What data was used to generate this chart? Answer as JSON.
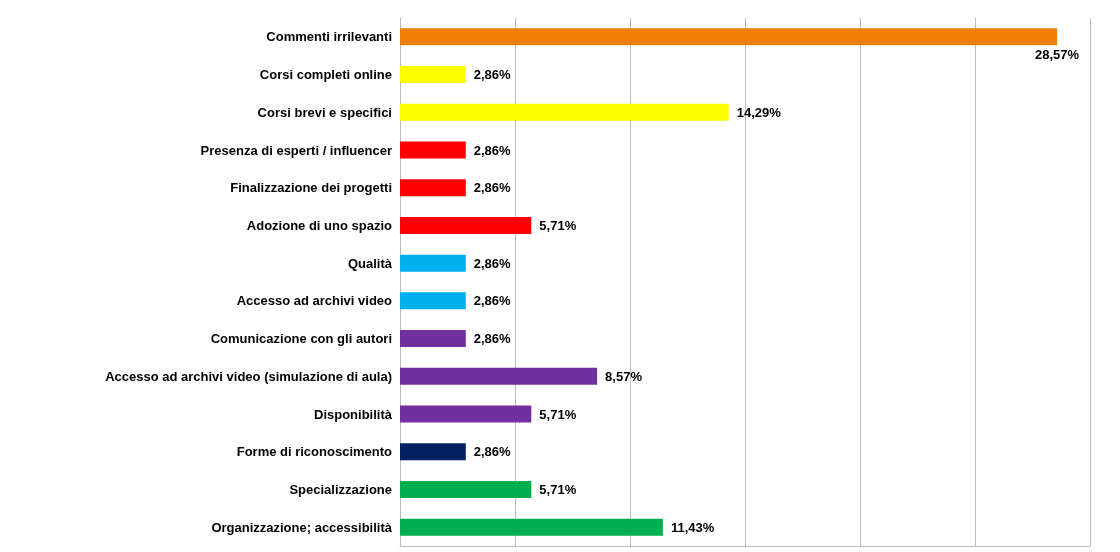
{
  "chart_data": {
    "type": "bar",
    "orientation": "horizontal",
    "categories": [
      "Commenti irrilevanti",
      "Corsi completi online",
      "Corsi brevi e specifici",
      "Presenza di esperti / influencer",
      "Finalizzazione dei progetti",
      "Adozione di uno spazio",
      "Qualità",
      "Accesso ad archivi video",
      "Comunicazione con gli autori",
      "Accesso ad archivi video (simulazione di aula)",
      "Disponibilità",
      "Forme di riconoscimento",
      "Specializzazione",
      "Organizzazione; accessibilità"
    ],
    "values": [
      28.57,
      2.86,
      14.29,
      2.86,
      2.86,
      5.71,
      2.86,
      2.86,
      2.86,
      8.57,
      5.71,
      2.86,
      5.71,
      11.43
    ],
    "value_labels": [
      "28,57%",
      "2,86%",
      "14,29%",
      "2,86%",
      "2,86%",
      "5,71%",
      "2,86%",
      "2,86%",
      "2,86%",
      "8,57%",
      "5,71%",
      "2,86%",
      "5,71%",
      "11,43%"
    ],
    "colors": [
      "#f07f09",
      "#ffff00",
      "#ffff00",
      "#ff0000",
      "#ff0000",
      "#ff0000",
      "#00b0f0",
      "#00b0f0",
      "#7030a0",
      "#7030a0",
      "#7030a0",
      "#002060",
      "#00b050",
      "#00b050"
    ],
    "xlim": [
      0,
      30
    ],
    "xticks": [
      {
        "value": 0,
        "label": null
      },
      {
        "value": 5,
        "label": null
      },
      {
        "value": 10,
        "label": null
      },
      {
        "value": 15,
        "label": null
      },
      {
        "value": 20,
        "label": null
      },
      {
        "value": 25,
        "label": null
      },
      {
        "value": 30,
        "label": null
      }
    ],
    "grid": "x",
    "tick_labels": "y"
  }
}
